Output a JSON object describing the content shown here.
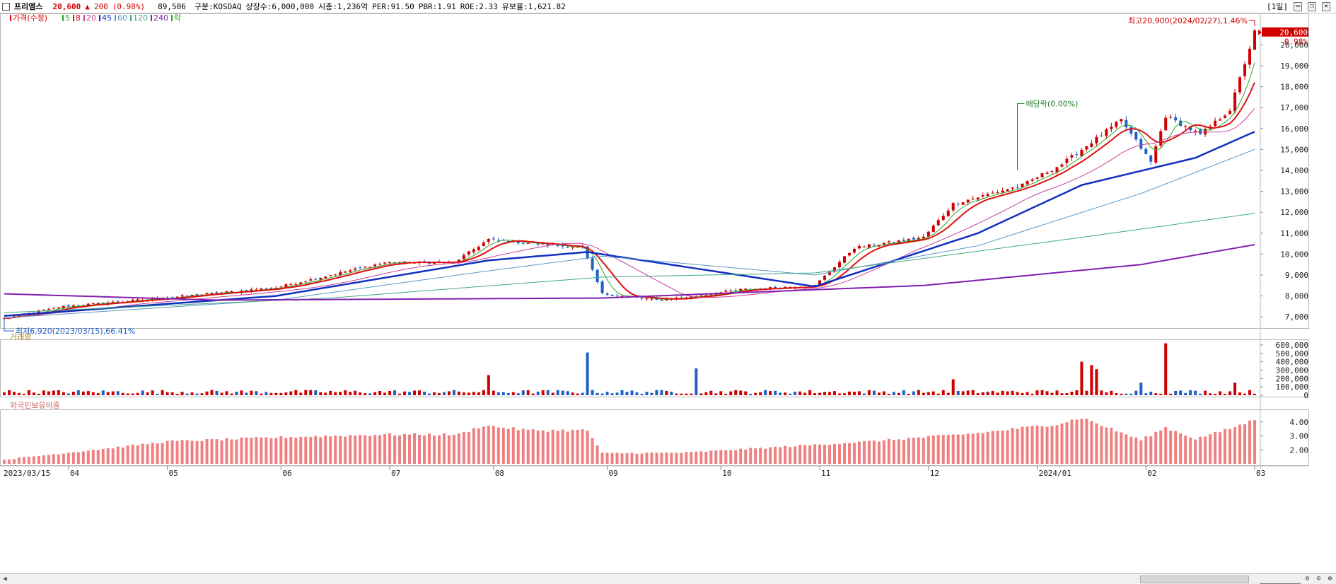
{
  "header": {
    "name": "프리엠스",
    "price": "20,600",
    "change_arrow": "▲",
    "change": "200",
    "change_pct": "(0.98%)",
    "volume": "89,506",
    "market": "구분:KOSDAQ",
    "shares": "상장수:6,000,000",
    "mktcap": "시총:1,236억",
    "per": "PER:91.50",
    "pbr": "PBR:1.91",
    "roe": "ROE:2.33",
    "float": "유보율:1,621.82",
    "period": "[1일]"
  },
  "colors": {
    "up": "#d10000",
    "down": "#1f5fc6",
    "ma5": "#2aa32a",
    "ma8": "#e01010",
    "ma20": "#c8409a",
    "ma45": "#1030c0",
    "ma60": "#5a98c8",
    "ma120": "#40a880",
    "ma240": "#8020b0",
    "foreign": "#f08080"
  },
  "legend": [
    {
      "label": "가격(수정)",
      "color": "#d10000"
    },
    {
      "label": "5",
      "color": "#2aa32a"
    },
    {
      "label": "8",
      "color": "#e01010"
    },
    {
      "label": "20",
      "color": "#c8409a"
    },
    {
      "label": "45",
      "color": "#1030c0"
    },
    {
      "label": "60",
      "color": "#5a98c8"
    },
    {
      "label": "120",
      "color": "#40a880"
    },
    {
      "label": "240",
      "color": "#8020b0"
    },
    {
      "label": "락",
      "color": "#2aa32a"
    }
  ],
  "chart_data": [
    {
      "type": "candlestick",
      "title": "가격(수정)",
      "ylim": [
        6600,
        21300
      ],
      "yticks": [
        7000,
        8000,
        9000,
        10000,
        11000,
        12000,
        13000,
        14000,
        15000,
        16000,
        17000,
        18000,
        19000,
        20000
      ],
      "ytick_labels": [
        "7,000",
        "8,000",
        "9,000",
        "10,000",
        "11,000",
        "12,000",
        "13,000",
        "14,000",
        "15,000",
        "16,000",
        "17,000",
        "18,000",
        "19,000",
        "20,000"
      ],
      "x_labels": [
        "2023/03/15",
        "04",
        "05",
        "06",
        "07",
        "08",
        "09",
        "10",
        "11",
        "12",
        "2024/01",
        "02",
        "03"
      ],
      "close_path": [
        [
          "2023-03-15",
          6920
        ],
        [
          "2023-03-31",
          7500
        ],
        [
          "2023-04-28",
          7900
        ],
        [
          "2023-05-31",
          8400
        ],
        [
          "2023-06-30",
          9600
        ],
        [
          "2023-07-20",
          9600
        ],
        [
          "2023-07-31",
          10700
        ],
        [
          "2023-08-18",
          10400
        ],
        [
          "2023-08-25",
          10300
        ],
        [
          "2023-08-31",
          8100
        ],
        [
          "2023-09-15",
          7800
        ],
        [
          "2023-09-27",
          8000
        ],
        [
          "2023-10-10",
          8300
        ],
        [
          "2023-10-31",
          8500
        ],
        [
          "2023-11-10",
          10300
        ],
        [
          "2023-11-30",
          10800
        ],
        [
          "2023-12-08",
          12400
        ],
        [
          "2023-12-28",
          13300
        ],
        [
          "2024-01-09",
          14300
        ],
        [
          "2024-01-25",
          16400
        ],
        [
          "2024-02-02",
          14400
        ],
        [
          "2024-02-07",
          16600
        ],
        [
          "2024-02-16",
          15700
        ],
        [
          "2024-02-26",
          16900
        ],
        [
          "2024-03-04",
          20600
        ]
      ],
      "last_price": "20,600",
      "last_change": "0.98%",
      "annotations": [
        {
          "text": "최고20,900(2024/02/27),1.46%",
          "date": "2024-03-04",
          "value": 20900
        },
        {
          "text": "최저6,920(2023/03/15),66.41%",
          "date": "2023-03-15",
          "value": 6920
        },
        {
          "text": "배당락(0.00%)",
          "date": "2023-12-27",
          "value": 17200
        }
      ],
      "moving_averages": [
        {
          "name": "5",
          "smoothing": 5
        },
        {
          "name": "8",
          "smoothing": 8
        },
        {
          "name": "20",
          "smoothing": 20
        },
        {
          "name": "45",
          "points": [
            [
              "2023-03-15",
              7050
            ],
            [
              "2023-05-31",
              8000
            ],
            [
              "2023-07-31",
              9700
            ],
            [
              "2023-08-28",
              10100
            ],
            [
              "2023-10-31",
              8450
            ],
            [
              "2023-12-15",
              11000
            ],
            [
              "2024-01-15",
              13300
            ],
            [
              "2024-02-15",
              14600
            ],
            [
              "2024-03-04",
              15850
            ]
          ]
        },
        {
          "name": "60",
          "points": [
            [
              "2023-03-15",
              6950
            ],
            [
              "2023-05-31",
              7800
            ],
            [
              "2023-07-31",
              9200
            ],
            [
              "2023-08-31",
              9900
            ],
            [
              "2023-10-31",
              9000
            ],
            [
              "2023-12-15",
              10400
            ],
            [
              "2024-01-31",
              12900
            ],
            [
              "2024-03-04",
              15000
            ]
          ]
        },
        {
          "name": "120",
          "points": [
            [
              "2023-03-15",
              7200
            ],
            [
              "2023-06-15",
              7900
            ],
            [
              "2023-08-31",
              8900
            ],
            [
              "2023-10-31",
              9100
            ],
            [
              "2024-01-15",
              10800
            ],
            [
              "2024-03-04",
              11950
            ]
          ]
        },
        {
          "name": "240",
          "points": [
            [
              "2023-03-15",
              8100
            ],
            [
              "2023-05-15",
              7800
            ],
            [
              "2023-08-31",
              7900
            ],
            [
              "2023-11-30",
              8500
            ],
            [
              "2024-01-31",
              9500
            ],
            [
              "2024-03-04",
              10450
            ]
          ]
        }
      ]
    },
    {
      "type": "bar",
      "title": "거래량",
      "ylim": [
        0,
        650000
      ],
      "yticks": [
        0,
        100000,
        200000,
        300000,
        400000,
        500000,
        600000
      ],
      "ytick_labels": [
        "0",
        "100,000",
        "200,000",
        "300,000",
        "400,000",
        "500,000",
        "600,000"
      ],
      "typical_volume": 40000,
      "spikes": [
        {
          "date": "2023-07-31",
          "value": 240000
        },
        {
          "date": "2023-08-28",
          "value": 510000
        },
        {
          "date": "2023-09-27",
          "value": 320000
        },
        {
          "date": "2023-12-08",
          "value": 190000
        },
        {
          "date": "2024-01-15",
          "value": 400000
        },
        {
          "date": "2024-01-17",
          "value": 360000
        },
        {
          "date": "2024-01-18",
          "value": 310000
        },
        {
          "date": "2024-01-31",
          "value": 150000
        },
        {
          "date": "2024-02-07",
          "value": 620000
        },
        {
          "date": "2024-02-27",
          "value": 150000
        }
      ]
    },
    {
      "type": "bar",
      "title": "외국인보유비중",
      "ylim": [
        1.0,
        4.8
      ],
      "yticks": [
        2.0,
        3.0,
        4.0
      ],
      "ytick_labels": [
        "2.00",
        "3.00",
        "4.00"
      ],
      "path": [
        [
          "2023-03-15",
          1.3
        ],
        [
          "2023-04-14",
          2.15
        ],
        [
          "2023-05-01",
          2.6
        ],
        [
          "2023-06-01",
          2.9
        ],
        [
          "2023-07-01",
          3.1
        ],
        [
          "2023-07-21",
          3.1
        ],
        [
          "2023-07-28",
          3.75
        ],
        [
          "2023-08-10",
          3.4
        ],
        [
          "2023-08-28",
          3.4
        ],
        [
          "2023-08-31",
          1.75
        ],
        [
          "2023-09-25",
          1.8
        ],
        [
          "2023-10-15",
          2.1
        ],
        [
          "2023-11-15",
          2.6
        ],
        [
          "2023-12-15",
          3.2
        ],
        [
          "2024-01-08",
          3.85
        ],
        [
          "2024-01-15",
          4.3
        ],
        [
          "2024-01-31",
          2.7
        ],
        [
          "2024-02-07",
          3.6
        ],
        [
          "2024-02-15",
          2.8
        ],
        [
          "2024-02-23",
          3.4
        ],
        [
          "2024-03-04",
          4.15
        ]
      ]
    }
  ]
}
